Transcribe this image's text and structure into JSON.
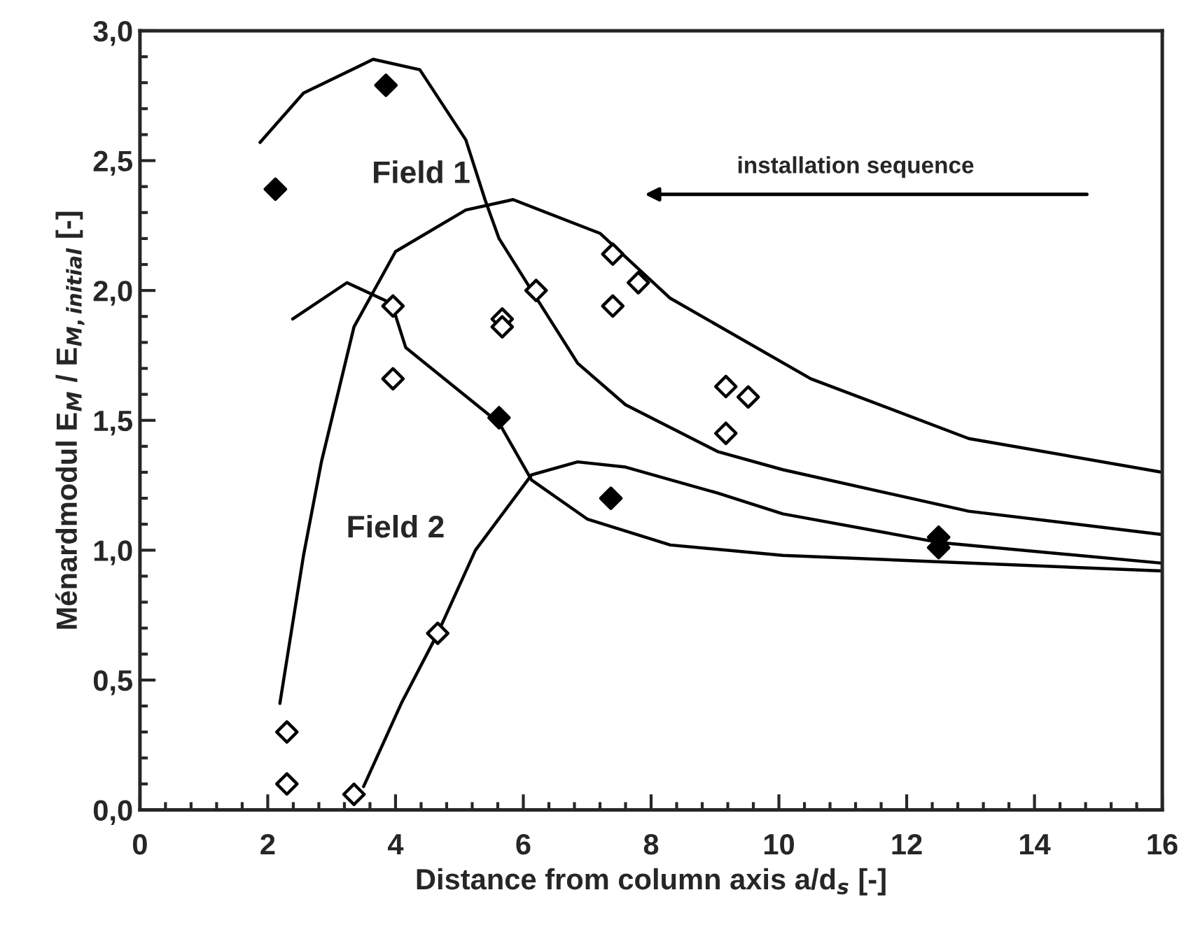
{
  "chart_data": {
    "type": "line",
    "xlabel": "Distance from column axis a/d$_{s}$ [-]",
    "ylabel": "Ménardmodul E$_{M}$ / E$_{M,initial}$ [-]",
    "xlim": [
      0,
      16
    ],
    "xticks": [
      0,
      2,
      4,
      6,
      8,
      10,
      12,
      14,
      16
    ],
    "ylim": [
      0,
      3
    ],
    "yticks": [
      {
        "value": 0,
        "label": "0,0"
      },
      {
        "value": 0.5,
        "label": "0,5"
      },
      {
        "value": 1,
        "label": "1,0"
      },
      {
        "value": 1.5,
        "label": "1,5"
      },
      {
        "value": 2,
        "label": "2,0"
      },
      {
        "value": 2.5,
        "label": "2,5"
      },
      {
        "value": 3,
        "label": "3,0"
      }
    ],
    "grid": false,
    "legend": false,
    "annotations": [
      "Field 1",
      "Field 2",
      "installation sequence"
    ],
    "series": [
      {
        "color": "#000000",
        "marker": "none",
        "line_style": "solid",
        "x": [
          1.88,
          2.56,
          3.65,
          4.38,
          5.1,
          5.4,
          5.62,
          6.13,
          6.85,
          7.6,
          9.04,
          10.06,
          12.97,
          16
        ],
        "values": [
          2.57,
          2.76,
          2.89,
          2.85,
          2.58,
          2.35,
          2.2,
          2.0,
          1.72,
          1.56,
          1.38,
          1.31,
          1.15,
          1.06
        ]
      },
      {
        "color": "#000000",
        "marker": "none",
        "line_style": "solid",
        "x": [
          2.19,
          2.56,
          2.84,
          3.35,
          4.0,
          5.1,
          5.84,
          7.2,
          8.3,
          10.5,
          12.97,
          16
        ],
        "values": [
          0.41,
          0.98,
          1.34,
          1.86,
          2.15,
          2.31,
          2.35,
          2.22,
          1.97,
          1.66,
          1.43,
          1.3
        ]
      },
      {
        "color": "#000000",
        "marker": "none",
        "line_style": "solid",
        "x": [
          2.39,
          3.24,
          3.94,
          4.16,
          5.62,
          6.13,
          7.0,
          8.3,
          10.06,
          16
        ],
        "values": [
          1.89,
          2.03,
          1.95,
          1.78,
          1.49,
          1.27,
          1.12,
          1.02,
          0.98,
          0.92
        ]
      },
      {
        "color": "#000000",
        "marker": "none",
        "line_style": "solid",
        "x": [
          3.5,
          4.09,
          4.66,
          5.25,
          6.13,
          6.85,
          7.6,
          9.04,
          10.06,
          12.5,
          16
        ],
        "values": [
          0.09,
          0.41,
          0.68,
          1.0,
          1.29,
          1.34,
          1.32,
          1.22,
          1.14,
          1.03,
          0.95
        ]
      },
      {
        "type": "scatter",
        "color": "#000000",
        "marker": "diamond",
        "x": [
          2.12,
          3.85,
          5.62,
          7.37,
          12.5,
          12.5
        ],
        "values": [
          2.39,
          2.79,
          1.51,
          1.2,
          1.05,
          1.01
        ]
      },
      {
        "type": "scatter",
        "color": "#ffffff",
        "marker": "diamond",
        "x": [
          2.3,
          2.3,
          3.35,
          3.96,
          3.96,
          4.66,
          5.67,
          5.67,
          6.2,
          7.4,
          7.4,
          7.8,
          9.17,
          9.17,
          9.52
        ],
        "values": [
          0.3,
          0.1,
          0.06,
          1.94,
          1.66,
          0.68,
          1.89,
          1.86,
          2.0,
          2.14,
          1.94,
          2.03,
          1.63,
          1.45,
          1.59
        ]
      }
    ]
  }
}
